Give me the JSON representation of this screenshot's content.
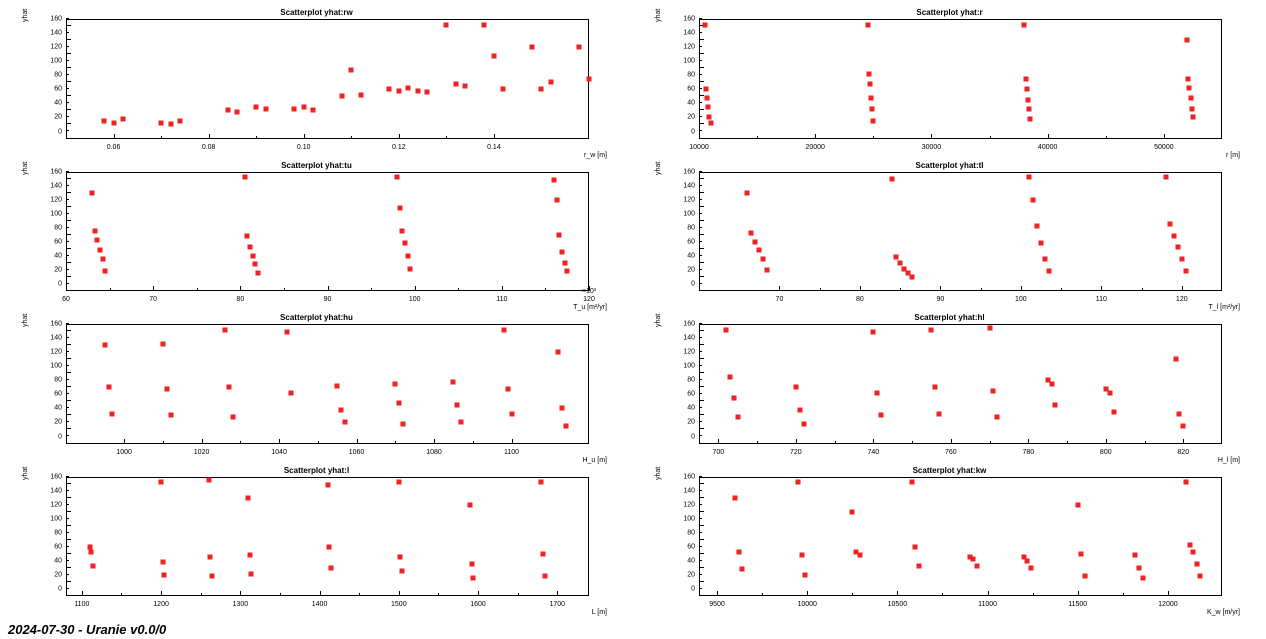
{
  "footer": "2024-07-30 - Uranie v0.0/0",
  "marker_color": "#ee2222",
  "marker_size": 5,
  "background_color": "#ffffff",
  "frame_color": "#000000",
  "tick_fontsize": 7,
  "title_fontsize": 8,
  "ylabel_common": "yhat",
  "ylim": [
    0,
    170
  ],
  "yticks": [
    0,
    20,
    40,
    60,
    80,
    100,
    120,
    140,
    160
  ],
  "panels": [
    {
      "title": "Scatterplot yhat:rw",
      "xlabel": "r_w [m]",
      "xlim": [
        0.05,
        0.16
      ],
      "xticks_labels": [
        "0.06",
        "0.08",
        "0.10",
        "0.12",
        "0.14"
      ],
      "xticks_pos": [
        0.06,
        0.08,
        0.1,
        0.12,
        0.14
      ],
      "points": [
        [
          0.058,
          25
        ],
        [
          0.06,
          22
        ],
        [
          0.062,
          28
        ],
        [
          0.07,
          22
        ],
        [
          0.072,
          20
        ],
        [
          0.074,
          25
        ],
        [
          0.084,
          40
        ],
        [
          0.086,
          38
        ],
        [
          0.09,
          45
        ],
        [
          0.092,
          42
        ],
        [
          0.098,
          42
        ],
        [
          0.1,
          45
        ],
        [
          0.102,
          40
        ],
        [
          0.108,
          60
        ],
        [
          0.11,
          98
        ],
        [
          0.112,
          62
        ],
        [
          0.118,
          70
        ],
        [
          0.12,
          68
        ],
        [
          0.122,
          72
        ],
        [
          0.124,
          68
        ],
        [
          0.126,
          66
        ],
        [
          0.13,
          162
        ],
        [
          0.132,
          78
        ],
        [
          0.134,
          75
        ],
        [
          0.138,
          162
        ],
        [
          0.14,
          118
        ],
        [
          0.142,
          70
        ],
        [
          0.148,
          130
        ],
        [
          0.15,
          70
        ],
        [
          0.152,
          80
        ],
        [
          0.158,
          130
        ],
        [
          0.16,
          85
        ]
      ]
    },
    {
      "title": "Scatterplot yhat:r",
      "xlabel": "r [m]",
      "xlim": [
        10000,
        55000
      ],
      "xticks_labels": [
        "10000",
        "20000",
        "30000",
        "40000",
        "50000"
      ],
      "xticks_pos": [
        10000,
        20000,
        30000,
        40000,
        50000
      ],
      "points": [
        [
          10500,
          162
        ],
        [
          10600,
          70
        ],
        [
          10700,
          58
        ],
        [
          10800,
          45
        ],
        [
          10900,
          30
        ],
        [
          11000,
          22
        ],
        [
          24500,
          162
        ],
        [
          24600,
          92
        ],
        [
          24700,
          78
        ],
        [
          24800,
          58
        ],
        [
          24900,
          42
        ],
        [
          25000,
          25
        ],
        [
          38000,
          162
        ],
        [
          38100,
          85
        ],
        [
          38200,
          70
        ],
        [
          38300,
          55
        ],
        [
          38400,
          42
        ],
        [
          38500,
          28
        ],
        [
          52000,
          140
        ],
        [
          52100,
          85
        ],
        [
          52200,
          72
        ],
        [
          52300,
          58
        ],
        [
          52400,
          42
        ],
        [
          52500,
          30
        ]
      ]
    },
    {
      "title": "Scatterplot yhat:tu",
      "xlabel": "T_u [m²/yr]",
      "xlim": [
        60000,
        120000
      ],
      "xticks_labels": [
        "60",
        "70",
        "80",
        "90",
        "100",
        "110",
        "120"
      ],
      "xticks_pos": [
        60000,
        70000,
        80000,
        90000,
        100000,
        110000,
        120000
      ],
      "xsuffix": "×10³",
      "points": [
        [
          63000,
          140
        ],
        [
          63300,
          85
        ],
        [
          63600,
          72
        ],
        [
          63900,
          58
        ],
        [
          64200,
          45
        ],
        [
          64500,
          28
        ],
        [
          80500,
          162
        ],
        [
          80800,
          78
        ],
        [
          81100,
          62
        ],
        [
          81400,
          50
        ],
        [
          81700,
          38
        ],
        [
          82000,
          25
        ],
        [
          98000,
          162
        ],
        [
          98300,
          118
        ],
        [
          98600,
          85
        ],
        [
          98900,
          68
        ],
        [
          99200,
          50
        ],
        [
          99500,
          32
        ],
        [
          116000,
          158
        ],
        [
          116300,
          130
        ],
        [
          116600,
          80
        ],
        [
          116900,
          55
        ],
        [
          117200,
          40
        ],
        [
          117500,
          28
        ]
      ]
    },
    {
      "title": "Scatterplot yhat:tl",
      "xlabel": "T_l [m²/yr]",
      "xlim": [
        60,
        125
      ],
      "xticks_labels": [
        "70",
        "80",
        "90",
        "100",
        "110",
        "120"
      ],
      "xticks_pos": [
        70,
        80,
        90,
        100,
        110,
        120
      ],
      "points": [
        [
          66,
          140
        ],
        [
          66.5,
          82
        ],
        [
          67,
          70
        ],
        [
          67.5,
          58
        ],
        [
          68,
          45
        ],
        [
          68.5,
          30
        ],
        [
          84,
          160
        ],
        [
          84.5,
          48
        ],
        [
          85,
          40
        ],
        [
          85.5,
          32
        ],
        [
          86,
          25
        ],
        [
          86.5,
          20
        ],
        [
          101,
          162
        ],
        [
          101.5,
          130
        ],
        [
          102,
          92
        ],
        [
          102.5,
          68
        ],
        [
          103,
          45
        ],
        [
          103.5,
          28
        ],
        [
          118,
          162
        ],
        [
          118.5,
          95
        ],
        [
          119,
          78
        ],
        [
          119.5,
          62
        ],
        [
          120,
          45
        ],
        [
          120.5,
          28
        ]
      ]
    },
    {
      "title": "Scatterplot yhat:hu",
      "xlabel": "H_u [m]",
      "xlim": [
        985,
        1120
      ],
      "xticks_labels": [
        "1000",
        "1020",
        "1040",
        "1060",
        "1080",
        "1100"
      ],
      "xticks_pos": [
        1000,
        1020,
        1040,
        1060,
        1080,
        1100
      ],
      "points": [
        [
          995,
          140
        ],
        [
          996,
          80
        ],
        [
          997,
          42
        ],
        [
          1010,
          142
        ],
        [
          1011,
          78
        ],
        [
          1012,
          40
        ],
        [
          1026,
          162
        ],
        [
          1027,
          80
        ],
        [
          1028,
          38
        ],
        [
          1042,
          158
        ],
        [
          1043,
          72
        ],
        [
          1055,
          82
        ],
        [
          1056,
          48
        ],
        [
          1057,
          30
        ],
        [
          1070,
          85
        ],
        [
          1071,
          58
        ],
        [
          1072,
          28
        ],
        [
          1085,
          88
        ],
        [
          1086,
          55
        ],
        [
          1087,
          30
        ],
        [
          1098,
          162
        ],
        [
          1099,
          78
        ],
        [
          1100,
          42
        ],
        [
          1112,
          130
        ],
        [
          1113,
          50
        ],
        [
          1114,
          25
        ]
      ]
    },
    {
      "title": "Scatterplot yhat:hl",
      "xlabel": "H_l [m]",
      "xlim": [
        695,
        830
      ],
      "xticks_labels": [
        "700",
        "720",
        "740",
        "760",
        "780",
        "800",
        "820"
      ],
      "xticks_pos": [
        700,
        720,
        740,
        760,
        780,
        800,
        820
      ],
      "points": [
        [
          702,
          162
        ],
        [
          703,
          95
        ],
        [
          704,
          65
        ],
        [
          705,
          38
        ],
        [
          720,
          80
        ],
        [
          721,
          48
        ],
        [
          722,
          28
        ],
        [
          740,
          158
        ],
        [
          741,
          72
        ],
        [
          742,
          40
        ],
        [
          755,
          162
        ],
        [
          756,
          80
        ],
        [
          757,
          42
        ],
        [
          770,
          165
        ],
        [
          771,
          75
        ],
        [
          772,
          38
        ],
        [
          785,
          90
        ],
        [
          786,
          85
        ],
        [
          787,
          55
        ],
        [
          800,
          78
        ],
        [
          801,
          72
        ],
        [
          802,
          45
        ],
        [
          818,
          120
        ],
        [
          819,
          42
        ],
        [
          820,
          25
        ]
      ]
    },
    {
      "title": "Scatterplot yhat:l",
      "xlabel": "L [m]",
      "xlim": [
        1080,
        1740
      ],
      "xticks_labels": [
        "1100",
        "1200",
        "1300",
        "1400",
        "1500",
        "1600",
        "1700"
      ],
      "xticks_pos": [
        1100,
        1200,
        1300,
        1400,
        1500,
        1600,
        1700
      ],
      "points": [
        [
          1110,
          70
        ],
        [
          1112,
          62
        ],
        [
          1114,
          42
        ],
        [
          1200,
          162
        ],
        [
          1202,
          48
        ],
        [
          1204,
          30
        ],
        [
          1260,
          165
        ],
        [
          1262,
          55
        ],
        [
          1264,
          28
        ],
        [
          1310,
          140
        ],
        [
          1312,
          58
        ],
        [
          1314,
          32
        ],
        [
          1410,
          158
        ],
        [
          1412,
          70
        ],
        [
          1414,
          40
        ],
        [
          1500,
          162
        ],
        [
          1502,
          55
        ],
        [
          1504,
          35
        ],
        [
          1590,
          130
        ],
        [
          1592,
          45
        ],
        [
          1594,
          25
        ],
        [
          1680,
          162
        ],
        [
          1682,
          60
        ],
        [
          1684,
          28
        ]
      ]
    },
    {
      "title": "Scatterplot yhat:kw",
      "xlabel": "K_w [m/yr]",
      "xlim": [
        9400,
        12300
      ],
      "xticks_labels": [
        "9500",
        "10000",
        "10500",
        "11000",
        "11500",
        "12000"
      ],
      "xticks_pos": [
        9500,
        10000,
        10500,
        11000,
        11500,
        12000
      ],
      "points": [
        [
          9600,
          140
        ],
        [
          9620,
          62
        ],
        [
          9640,
          38
        ],
        [
          9950,
          162
        ],
        [
          9970,
          58
        ],
        [
          9990,
          30
        ],
        [
          10250,
          120
        ],
        [
          10270,
          62
        ],
        [
          10290,
          58
        ],
        [
          10580,
          162
        ],
        [
          10600,
          70
        ],
        [
          10620,
          42
        ],
        [
          10900,
          55
        ],
        [
          10920,
          52
        ],
        [
          10940,
          42
        ],
        [
          11200,
          55
        ],
        [
          11220,
          50
        ],
        [
          11240,
          40
        ],
        [
          11500,
          130
        ],
        [
          11520,
          60
        ],
        [
          11540,
          28
        ],
        [
          11820,
          58
        ],
        [
          11840,
          40
        ],
        [
          11860,
          25
        ],
        [
          12100,
          162
        ],
        [
          12120,
          72
        ],
        [
          12140,
          62
        ],
        [
          12160,
          45
        ],
        [
          12180,
          28
        ]
      ]
    }
  ]
}
